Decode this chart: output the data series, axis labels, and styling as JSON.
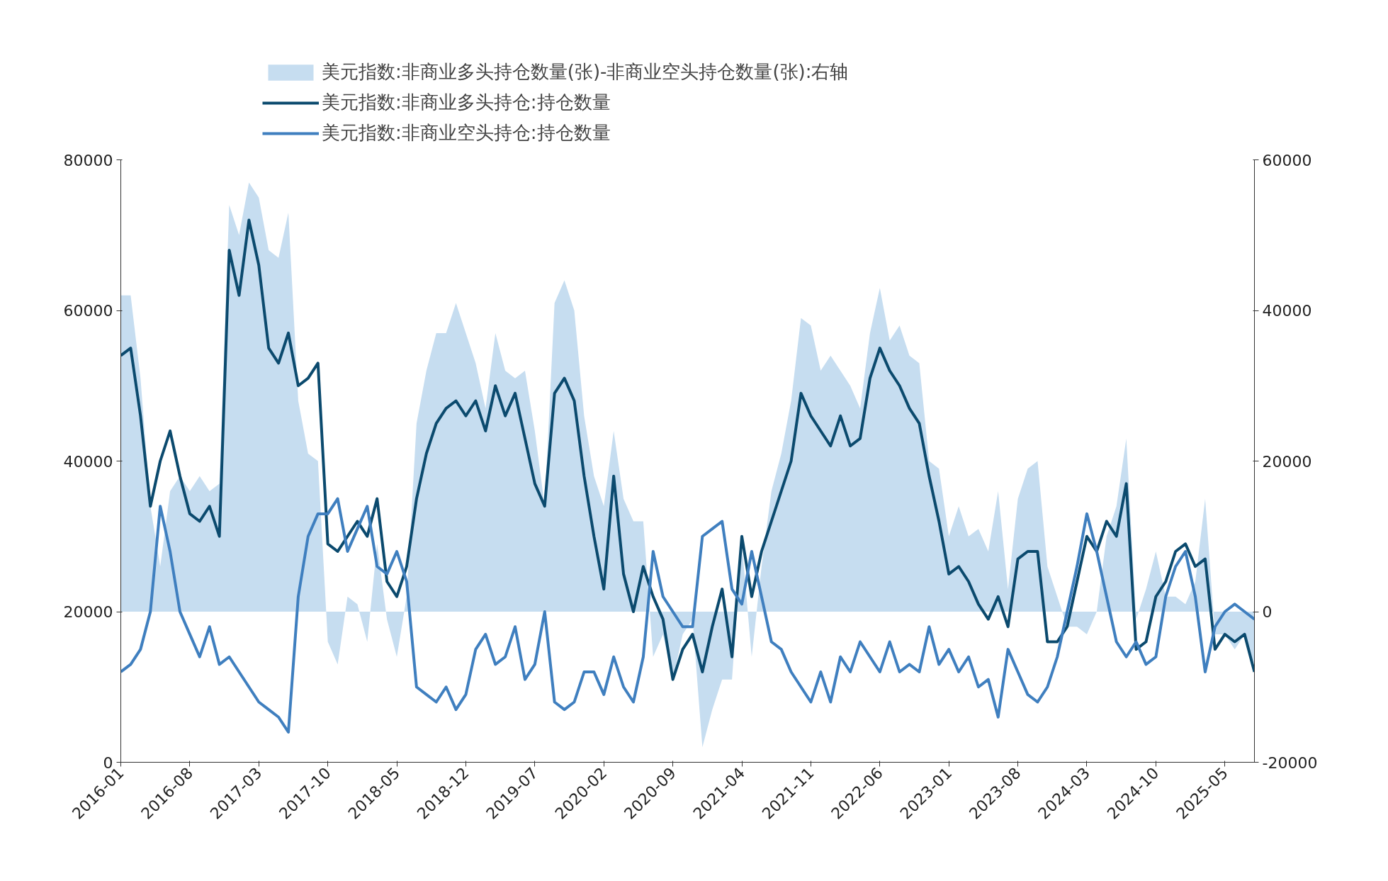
{
  "chart_data": {
    "type": "line",
    "x": [
      "2016-01",
      "2016-02",
      "2016-03",
      "2016-04",
      "2016-05",
      "2016-06",
      "2016-07",
      "2016-08",
      "2016-09",
      "2016-10",
      "2016-11",
      "2016-12",
      "2017-01",
      "2017-02",
      "2017-03",
      "2017-04",
      "2017-05",
      "2017-06",
      "2017-07",
      "2017-08",
      "2017-09",
      "2017-10",
      "2017-11",
      "2017-12",
      "2018-01",
      "2018-02",
      "2018-03",
      "2018-04",
      "2018-05",
      "2018-06",
      "2018-07",
      "2018-08",
      "2018-09",
      "2018-10",
      "2018-11",
      "2018-12",
      "2019-01",
      "2019-02",
      "2019-03",
      "2019-04",
      "2019-05",
      "2019-06",
      "2019-07",
      "2019-08",
      "2019-09",
      "2019-10",
      "2019-11",
      "2019-12",
      "2020-01",
      "2020-02",
      "2020-03",
      "2020-04",
      "2020-05",
      "2020-06",
      "2020-07",
      "2020-08",
      "2020-09",
      "2020-10",
      "2020-11",
      "2020-12",
      "2021-01",
      "2021-02",
      "2021-03",
      "2021-04",
      "2021-05",
      "2021-06",
      "2021-07",
      "2021-08",
      "2021-09",
      "2021-10",
      "2021-11",
      "2021-12",
      "2022-01",
      "2022-02",
      "2022-03",
      "2022-04",
      "2022-05",
      "2022-06",
      "2022-07",
      "2022-08",
      "2022-09",
      "2022-10",
      "2022-11",
      "2022-12",
      "2023-01",
      "2023-02",
      "2023-03",
      "2023-04",
      "2023-05",
      "2023-06",
      "2023-07",
      "2023-08",
      "2023-09",
      "2023-10",
      "2023-11",
      "2023-12",
      "2024-01",
      "2024-02",
      "2024-03",
      "2024-04",
      "2024-05",
      "2024-06",
      "2024-07",
      "2024-08",
      "2024-09",
      "2024-10",
      "2024-11",
      "2024-12",
      "2025-01",
      "2025-02",
      "2025-03",
      "2025-04",
      "2025-05",
      "2025-06",
      "2025-07",
      "2025-08"
    ],
    "series": [
      {
        "name": "美元指数:非商业多头持仓数量(张)-非商业空头持仓数量(张):右轴",
        "type": "area",
        "axis": "y2",
        "color": "#c6ddf0",
        "values": [
          42000,
          42000,
          31000,
          14000,
          6000,
          16000,
          18000,
          16000,
          18000,
          16000,
          17000,
          54000,
          50000,
          57000,
          55000,
          48000,
          47000,
          53000,
          28000,
          21000,
          20000,
          -4000,
          -7000,
          2000,
          1000,
          -4000,
          9000,
          -1000,
          -6000,
          2000,
          25000,
          32000,
          37000,
          37000,
          41000,
          37000,
          33000,
          27000,
          37000,
          32000,
          31000,
          32000,
          24000,
          14000,
          41000,
          44000,
          40000,
          26000,
          18000,
          14000,
          24000,
          15000,
          12000,
          12000,
          -6000,
          -3000,
          -9000,
          -3000,
          -1000,
          -18000,
          -13000,
          -9000,
          -9000,
          9000,
          -6000,
          6000,
          16000,
          21000,
          28000,
          39000,
          38000,
          32000,
          34000,
          32000,
          30000,
          27000,
          37000,
          43000,
          36000,
          38000,
          34000,
          33000,
          20000,
          19000,
          10000,
          14000,
          10000,
          11000,
          8000,
          16000,
          3000,
          15000,
          19000,
          20000,
          6000,
          2000,
          -2000,
          -2000,
          -3000,
          0,
          10000,
          14000,
          23000,
          -1000,
          3000,
          8000,
          2000,
          2000,
          1000,
          4000,
          15000,
          -3000,
          -3000,
          -5000,
          -3000,
          -7000
        ]
      },
      {
        "name": "美元指数:非商业多头持仓:持仓数量",
        "color": "#0b4a6e",
        "values": [
          54000,
          55000,
          46000,
          34000,
          40000,
          44000,
          38000,
          33000,
          32000,
          34000,
          30000,
          68000,
          62000,
          72000,
          66000,
          55000,
          53000,
          57000,
          50000,
          51000,
          53000,
          29000,
          28000,
          30000,
          32000,
          30000,
          35000,
          24000,
          22000,
          26000,
          35000,
          41000,
          45000,
          47000,
          48000,
          46000,
          48000,
          44000,
          50000,
          46000,
          49000,
          43000,
          37000,
          34000,
          49000,
          51000,
          48000,
          38000,
          30000,
          23000,
          38000,
          25000,
          20000,
          26000,
          22000,
          19000,
          11000,
          15000,
          17000,
          12000,
          18000,
          23000,
          14000,
          30000,
          22000,
          28000,
          32000,
          36000,
          40000,
          49000,
          46000,
          44000,
          42000,
          46000,
          42000,
          43000,
          51000,
          55000,
          52000,
          50000,
          47000,
          45000,
          38000,
          32000,
          25000,
          26000,
          24000,
          21000,
          19000,
          22000,
          18000,
          27000,
          28000,
          28000,
          16000,
          16000,
          18000,
          24000,
          30000,
          28000,
          32000,
          30000,
          37000,
          15000,
          16000,
          22000,
          24000,
          28000,
          29000,
          26000,
          27000,
          15000,
          17000,
          16000,
          17000,
          12000
        ]
      },
      {
        "name": "美元指数:非商业空头持仓:持仓数量",
        "color": "#3f7fbf",
        "values": [
          12000,
          13000,
          15000,
          20000,
          34000,
          28000,
          20000,
          17000,
          14000,
          18000,
          13000,
          14000,
          12000,
          10000,
          8000,
          7000,
          6000,
          4000,
          22000,
          30000,
          33000,
          33000,
          35000,
          28000,
          31000,
          34000,
          26000,
          25000,
          28000,
          24000,
          10000,
          9000,
          8000,
          10000,
          7000,
          9000,
          15000,
          17000,
          13000,
          14000,
          18000,
          11000,
          13000,
          20000,
          8000,
          7000,
          8000,
          12000,
          12000,
          9000,
          14000,
          10000,
          8000,
          14000,
          28000,
          22000,
          20000,
          18000,
          18000,
          30000,
          31000,
          32000,
          23000,
          21000,
          28000,
          22000,
          16000,
          15000,
          12000,
          10000,
          8000,
          12000,
          8000,
          14000,
          12000,
          16000,
          14000,
          12000,
          16000,
          12000,
          13000,
          12000,
          18000,
          13000,
          15000,
          12000,
          14000,
          10000,
          11000,
          6000,
          15000,
          12000,
          9000,
          8000,
          10000,
          14000,
          20000,
          26000,
          33000,
          28000,
          22000,
          16000,
          14000,
          16000,
          13000,
          14000,
          22000,
          26000,
          28000,
          22000,
          12000,
          18000,
          20000,
          21000,
          20000,
          19000
        ]
      }
    ],
    "xlim": [
      "2016-01",
      "2025-08"
    ],
    "xticks": [
      "2016-01",
      "2016-08",
      "2017-03",
      "2017-10",
      "2018-05",
      "2018-12",
      "2019-07",
      "2020-02",
      "2020-09",
      "2021-04",
      "2021-11",
      "2022-06",
      "2023-01",
      "2023-08",
      "2024-03",
      "2024-10",
      "2025-05"
    ],
    "ylim": [
      0,
      80000
    ],
    "yticks": [
      0,
      20000,
      40000,
      60000,
      80000
    ],
    "y2lim": [
      -20000,
      60000
    ],
    "y2ticks": [
      -20000,
      0,
      20000,
      40000,
      60000
    ],
    "grid": false,
    "legend": "top",
    "line_style": "solid",
    "marker": "none"
  }
}
